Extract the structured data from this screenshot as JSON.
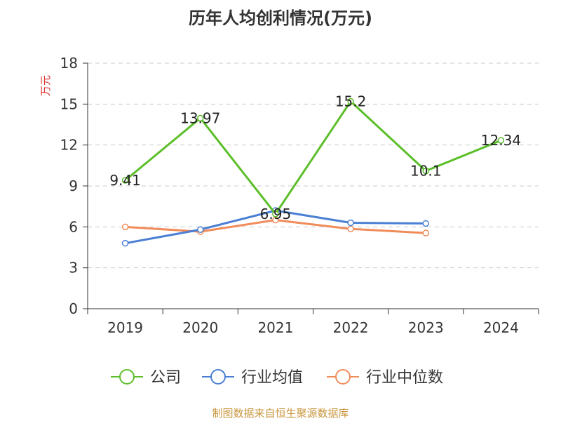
{
  "chart_data": {
    "type": "line",
    "title": "历年人均创利情况(万元)",
    "ylabel": "万元",
    "xlabel": "",
    "categories": [
      "2019",
      "2020",
      "2021",
      "2022",
      "2023",
      "2024"
    ],
    "ylim": [
      0,
      18
    ],
    "yticks": [
      0,
      3,
      6,
      9,
      12,
      15,
      18
    ],
    "grid": true,
    "legend_position": "bottom",
    "series": [
      {
        "name": "公司",
        "values": [
          9.41,
          13.97,
          6.95,
          15.2,
          10.1,
          12.34
        ],
        "color": "#5cbf2a",
        "labels": [
          "9.41",
          "13.97",
          "6.95",
          "15.2",
          "10.1",
          "12.34"
        ]
      },
      {
        "name": "行业均值",
        "values": [
          4.8,
          5.8,
          7.2,
          6.3,
          6.25,
          null
        ],
        "color": "#4a7fd4"
      },
      {
        "name": "行业中位数",
        "values": [
          6.0,
          5.65,
          6.5,
          5.85,
          5.55,
          null
        ],
        "color": "#f08c5a"
      }
    ]
  },
  "source_text": "制图数据来自恒生聚源数据库"
}
